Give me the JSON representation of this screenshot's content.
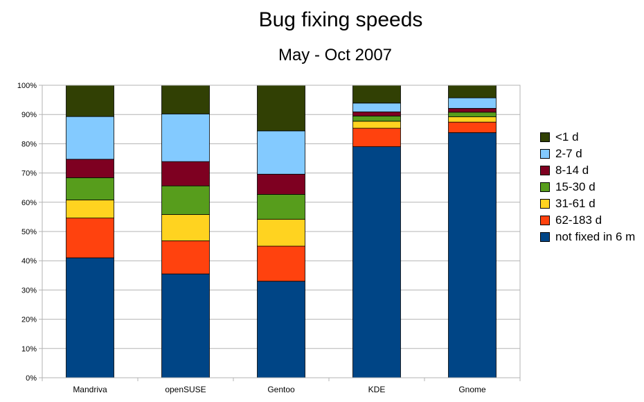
{
  "chart_data": {
    "type": "bar",
    "stacked": true,
    "percent": true,
    "title": "Bug fixing speeds",
    "subtitle": "May - Oct 2007",
    "categories": [
      "Mandriva",
      "openSUSE",
      "Gentoo",
      "KDE",
      "Gnome"
    ],
    "ylim": [
      0,
      100
    ],
    "yticks": [
      "0%",
      "10%",
      "20%",
      "30%",
      "40%",
      "50%",
      "60%",
      "70%",
      "80%",
      "90%",
      "100%"
    ],
    "grid": true,
    "legend_position": "right",
    "series": [
      {
        "name": "not fixed in 6 m",
        "color": "#004586",
        "values": [
          41,
          35.5,
          33,
          79,
          83.8
        ]
      },
      {
        "name": "62-183 d",
        "color": "#ff420e",
        "values": [
          13.6,
          11.3,
          12,
          6.3,
          3.6
        ]
      },
      {
        "name": "31-61 d",
        "color": "#ffd320",
        "values": [
          6.2,
          9,
          9.2,
          2.4,
          1.8
        ]
      },
      {
        "name": "15-30 d",
        "color": "#579d1c",
        "values": [
          7.6,
          9.8,
          8.5,
          1.8,
          1.6
        ]
      },
      {
        "name": "8-14 d",
        "color": "#7e0021",
        "values": [
          6.3,
          8.3,
          6.9,
          1.4,
          1.3
        ]
      },
      {
        "name": "2-7 d",
        "color": "#83caff",
        "values": [
          14.6,
          16.3,
          14.8,
          3,
          3.6
        ]
      },
      {
        "name": "<1 d",
        "color": "#314004",
        "values": [
          10.7,
          9.8,
          15.6,
          6.1,
          4.3
        ]
      }
    ]
  }
}
